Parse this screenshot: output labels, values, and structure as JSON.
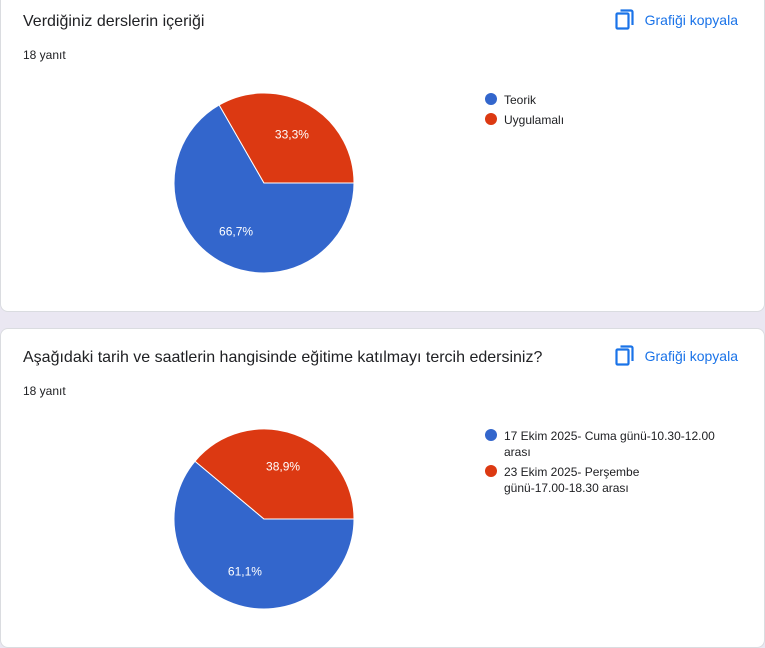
{
  "copy_label": "Grafiği kopyala",
  "icons": {
    "copy": "copy-icon"
  },
  "colors": {
    "blue": "#3366cc",
    "red": "#dc3912",
    "accent": "#1a73e8"
  },
  "questions": [
    {
      "title": "Verdiğiniz derslerin içeriği",
      "responses": "18 yanıt",
      "chart_data": {
        "type": "pie",
        "categories": [
          "Teorik",
          "Uygulamalı"
        ],
        "values": [
          66.7,
          33.3
        ],
        "labels": [
          "66,7%",
          "33,3%"
        ],
        "colors": [
          "#3366cc",
          "#dc3912"
        ],
        "legend": "right"
      }
    },
    {
      "title": "Aşağıdaki tarih ve saatlerin hangisinde eğitime katılmayı tercih edersiniz?",
      "responses": "18 yanıt",
      "chart_data": {
        "type": "pie",
        "categories": [
          "17 Ekim 2025- Cuma günü-10.30-12.00 arası",
          "23 Ekim 2025- Perşembe günü-17.00-18.30 arası"
        ],
        "values": [
          61.1,
          38.9
        ],
        "labels": [
          "61,1%",
          "38,9%"
        ],
        "colors": [
          "#3366cc",
          "#dc3912"
        ],
        "legend": "right"
      }
    }
  ]
}
